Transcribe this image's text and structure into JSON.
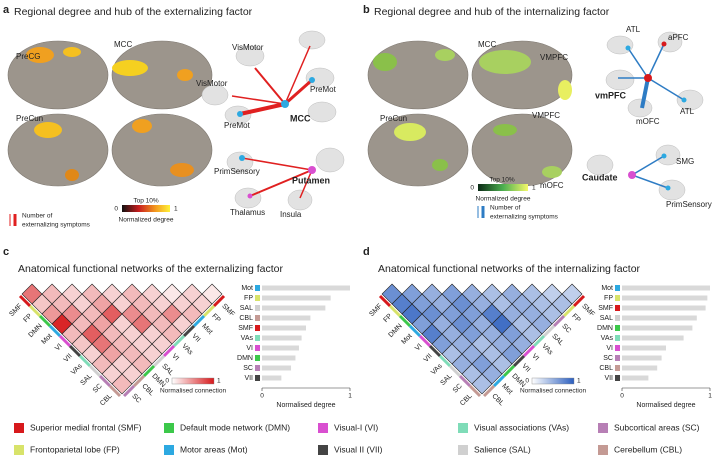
{
  "panel_a": {
    "letter": "a",
    "title": "Regional degree and hub of the externalizing factor",
    "regions": [
      "PreCG",
      "MCC",
      "PreCun"
    ],
    "network_labels": [
      "VisMotor",
      "VisMotor",
      "PreMot",
      "PreMot",
      "MCC",
      "PrimSensory",
      "Putamen",
      "Thalamus",
      "Insula"
    ],
    "colorbar": {
      "caption": "Top 10%",
      "min_label": "0",
      "max_label": "1",
      "label": "Normalized degree"
    },
    "symptom_caption": [
      "Number of",
      "externalizing symptoms"
    ]
  },
  "panel_b": {
    "letter": "b",
    "title": "Regional degree and hub of the internalizing factor",
    "regions": [
      "MCC",
      "VMPFC",
      "VMPFC",
      "PreCun",
      "mOFC"
    ],
    "network_labels": [
      "ATL",
      "aPFC",
      "vmPFC",
      "mOFC",
      "ATL",
      "Caudate",
      "SMG",
      "PrimSensory"
    ],
    "colorbar": {
      "caption": "Top 10%",
      "min_label": "0",
      "max_label": "1",
      "label": "Normalized degree"
    },
    "symptom_caption": [
      "Number of",
      "externalizing symptoms"
    ]
  },
  "panel_c": {
    "letter": "c",
    "title": "Anatomical functional networks of the externalizing factor",
    "matrix": {
      "color": "#d7191c",
      "left_labels": [
        "SMF",
        "FP",
        "DMN",
        "Mot",
        "VI",
        "VII",
        "VAs",
        "SAL",
        "SC",
        "CBL"
      ],
      "right_labels": [
        "SMF",
        "FP",
        "Mot",
        "VII",
        "VAs",
        "VI",
        "SAL",
        "DMN",
        "CBL",
        "SC"
      ],
      "values": [
        [
          0.6
        ],
        [
          0.3,
          0.25
        ],
        [
          0.2,
          0.3,
          0.45
        ],
        [
          0.3,
          0.2,
          0.5,
          0.95
        ],
        [
          0.2,
          0.4,
          0.3,
          0.3,
          0.3
        ],
        [
          0.3,
          0.2,
          0.7,
          0.4,
          0.7,
          0.25
        ],
        [
          0.2,
          0.3,
          0.5,
          0.2,
          0.3,
          0.6,
          0.2
        ],
        [
          0.1,
          0.2,
          0.3,
          0.6,
          0.2,
          0.3,
          0.4,
          0.3
        ],
        [
          0.2,
          0.2,
          0.5,
          0.3,
          0.2,
          0.2,
          0.3,
          0.2,
          0.2
        ],
        [
          0.1,
          0.2,
          0.3,
          0.2,
          0.3,
          0.2,
          0.2,
          0.3,
          0.2,
          0.3
        ]
      ],
      "colorbar": {
        "min_label": "0",
        "max_label": "1",
        "label": "Normalised connection"
      }
    },
    "bars": {
      "type": "bar",
      "categories": [
        "Mot",
        "FP",
        "SAL",
        "CBL",
        "SMF",
        "VAs",
        "VI",
        "DMN",
        "SC",
        "VII"
      ],
      "values": [
        1,
        0.78,
        0.72,
        0.55,
        0.5,
        0.45,
        0.42,
        0.38,
        0.33,
        0.22
      ],
      "color": "#d9d9d9",
      "xlim": [
        0,
        1
      ],
      "xticks": [
        0,
        1
      ],
      "xlabel": "Normalised degree"
    }
  },
  "panel_d": {
    "letter": "d",
    "title": "Anatomical functional networks of the internalizing factor",
    "matrix": {
      "color": "#2c5fbf",
      "left_labels": [
        "SMF",
        "FP",
        "DMN",
        "Mot",
        "VI",
        "VII",
        "VAs",
        "SAL",
        "SC",
        "CBL"
      ],
      "right_labels": [
        "SMF",
        "FP",
        "SC",
        "SAL",
        "VAs",
        "VI",
        "VII",
        "DMN",
        "Mot",
        "CBL"
      ],
      "values": [
        [
          0.7
        ],
        [
          0.6,
          0.8
        ],
        [
          0.5,
          0.6,
          0.85
        ],
        [
          0.6,
          0.5,
          0.7,
          0.6
        ],
        [
          0.5,
          0.7,
          0.6,
          0.5,
          0.8
        ],
        [
          0.4,
          0.5,
          0.6,
          0.7,
          0.5,
          0.6
        ],
        [
          0.5,
          0.4,
          0.8,
          0.5,
          0.6,
          0.5,
          0.4
        ],
        [
          0.4,
          0.5,
          0.5,
          0.9,
          0.5,
          0.4,
          0.5,
          0.5
        ],
        [
          0.3,
          0.4,
          0.5,
          0.4,
          0.6,
          0.5,
          0.4,
          0.6,
          0.4
        ],
        [
          0.3,
          0.4,
          0.4,
          0.5,
          0.4,
          0.5,
          0.6,
          0.4,
          0.5,
          0.4
        ]
      ],
      "colorbar": {
        "min_label": "0",
        "max_label": "1",
        "label": "Normalised connection"
      }
    },
    "bars": {
      "type": "bar",
      "categories": [
        "Mot",
        "FP",
        "SMF",
        "SAL",
        "DMN",
        "VAs",
        "VI",
        "SC",
        "CBL",
        "VII"
      ],
      "values": [
        1,
        0.97,
        0.95,
        0.85,
        0.8,
        0.7,
        0.5,
        0.45,
        0.4,
        0.3
      ],
      "color": "#d9d9d9",
      "xlim": [
        0,
        1
      ],
      "xticks": [
        0,
        1
      ],
      "xlabel": "Normalised degree"
    }
  },
  "legend": [
    {
      "label": "Superior medial frontal (SMF)",
      "color": "#d7191c"
    },
    {
      "label": "Default mode network (DMN)",
      "color": "#3cc84a"
    },
    {
      "label": "Visual-I (VI)",
      "color": "#d94fd0"
    },
    {
      "label": "Visual associations (VAs)",
      "color": "#7fdcb8"
    },
    {
      "label": "Subcortical areas (SC)",
      "color": "#b77fb5"
    },
    {
      "label": "Frontoparietal lobe (FP)",
      "color": "#d8e36a"
    },
    {
      "label": "Motor areas (Mot)",
      "color": "#2da9e1"
    },
    {
      "label": "Visual II (VII)",
      "color": "#444444"
    },
    {
      "label": "Salience (SAL)",
      "color": "#d0d0d0"
    },
    {
      "label": "Cerebellum (CBL)",
      "color": "#c49a94"
    }
  ]
}
